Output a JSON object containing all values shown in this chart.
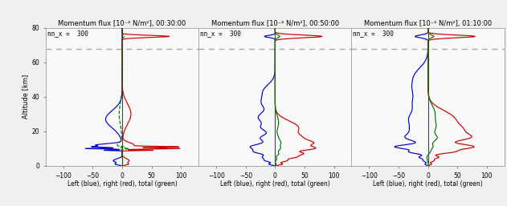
{
  "titles": [
    "Momentum flux [10⁻² N/m²], 00:30:00",
    "Momentum flux [10⁻² N/m²], 00:50:00",
    "Momentum flux [10⁻² N/m²], 01:10:00"
  ],
  "annotation": "nn_x =  300",
  "xlabel": "Left (blue), right (red), total (green)",
  "ylabel": "Altitude [km]",
  "xlim": [
    -130,
    130
  ],
  "ylim": [
    0,
    80
  ],
  "xticks": [
    -100,
    -50,
    0,
    50,
    100
  ],
  "yticks": [
    0,
    20,
    40,
    60,
    80
  ],
  "dashed_line_y": 68,
  "bg_color": "#f0f0f0",
  "plot_bg": "#f8f8f8",
  "blue": "#0000cc",
  "red": "#cc0000",
  "green": "#007700",
  "dash_gray": "#aaaaaa",
  "zero_color": "#444444",
  "tick_color": "#555555",
  "figsize": [
    6.31,
    2.57
  ],
  "dpi": 100,
  "green_dashed_panels": [
    0
  ]
}
